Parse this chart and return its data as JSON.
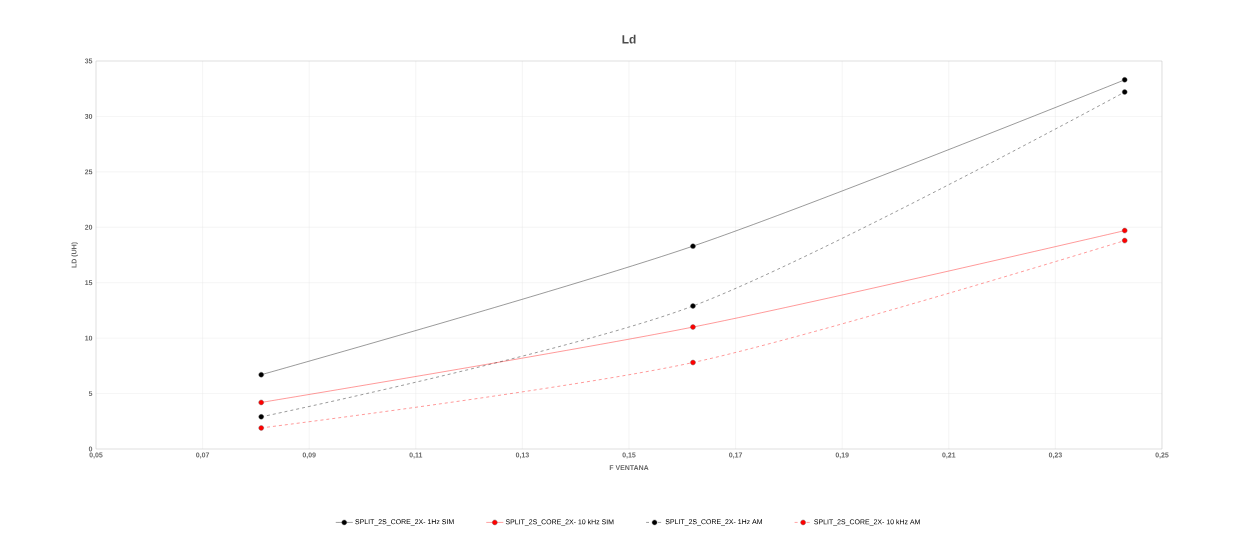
{
  "chart_data": {
    "type": "line",
    "title": "Ld",
    "xlabel": "F VENTANA",
    "ylabel": "LD (UH)",
    "xlim": [
      0.05,
      0.25
    ],
    "ylim": [
      0,
      35
    ],
    "xticks": [
      {
        "value": 0.05,
        "label": "0,05"
      },
      {
        "value": 0.07,
        "label": "0,07"
      },
      {
        "value": 0.09,
        "label": "0,09"
      },
      {
        "value": 0.11,
        "label": "0,11"
      },
      {
        "value": 0.13,
        "label": "0,13"
      },
      {
        "value": 0.15,
        "label": "0,15"
      },
      {
        "value": 0.17,
        "label": "0,17"
      },
      {
        "value": 0.19,
        "label": "0,19"
      },
      {
        "value": 0.21,
        "label": "0,21"
      },
      {
        "value": 0.23,
        "label": "0,23"
      },
      {
        "value": 0.25,
        "label": "0,25"
      }
    ],
    "yticks": [
      0,
      5,
      10,
      15,
      20,
      25,
      30,
      35
    ],
    "grid": true,
    "legend": "bottom",
    "marker": "circle",
    "x": [
      0.081,
      0.162,
      0.243
    ],
    "series": [
      {
        "name": "SPLIT_2S_CORE_2X- 1Hz SIM",
        "color": "#000000",
        "values": [
          6.7,
          18.3,
          33.3
        ],
        "line_style": "solid"
      },
      {
        "name": "SPLIT_2S_CORE_2X- 10 kHz SIM",
        "color": "#ff0000",
        "values": [
          4.2,
          11.0,
          19.7
        ],
        "line_style": "solid"
      },
      {
        "name": "SPLIT_2S_CORE_2X- 1Hz AM",
        "color": "#000000",
        "values": [
          2.9,
          12.9,
          32.2
        ],
        "line_style": "dashed"
      },
      {
        "name": "SPLIT_2S_CORE_2X- 10 kHz AM",
        "color": "#ff0000",
        "values": [
          1.9,
          7.8,
          18.8
        ],
        "line_style": "dashed"
      }
    ]
  }
}
